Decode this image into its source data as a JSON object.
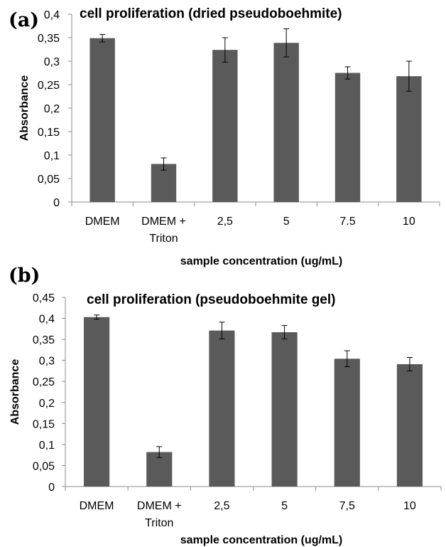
{
  "bar_color": "#5a5a5a",
  "chart_data": [
    {
      "type": "bar",
      "panel_label": "(a)",
      "title": "cell proliferation (dried pseudoboehmite)",
      "xlabel": "sample concentration (ug/mL)",
      "ylabel": "Absorbance",
      "ylim": [
        0,
        0.4
      ],
      "yticks": [
        "0",
        "0,05",
        "0,1",
        "0,15",
        "0,2",
        "0,25",
        "0,3",
        "0,35",
        "0,4"
      ],
      "categories": [
        [
          "DMEM"
        ],
        [
          "DMEM +",
          "Triton"
        ],
        [
          "2,5"
        ],
        [
          "5"
        ],
        [
          "7.5"
        ],
        [
          "10"
        ]
      ],
      "values": [
        0.349,
        0.081,
        0.324,
        0.339,
        0.275,
        0.268
      ],
      "errors": [
        0.008,
        0.013,
        0.026,
        0.03,
        0.013,
        0.032
      ],
      "grid": false
    },
    {
      "type": "bar",
      "panel_label": "(b)",
      "title": "cell proliferation (pseudoboehmite gel)",
      "xlabel": "sample concentration (ug/mL)",
      "ylabel": "Absorbance",
      "ylim": [
        0,
        0.45
      ],
      "yticks": [
        "0",
        "0,05",
        "0,1",
        "0,15",
        "0,2",
        "0,25",
        "0,3",
        "0,35",
        "0,4",
        "0,45"
      ],
      "categories": [
        [
          "DMEM"
        ],
        [
          "DMEM +",
          "Triton"
        ],
        [
          "2,5"
        ],
        [
          "5"
        ],
        [
          "7,5"
        ],
        [
          "10"
        ]
      ],
      "values": [
        0.403,
        0.082,
        0.371,
        0.367,
        0.304,
        0.291
      ],
      "errors": [
        0.005,
        0.013,
        0.02,
        0.016,
        0.019,
        0.016
      ],
      "grid": false
    }
  ]
}
